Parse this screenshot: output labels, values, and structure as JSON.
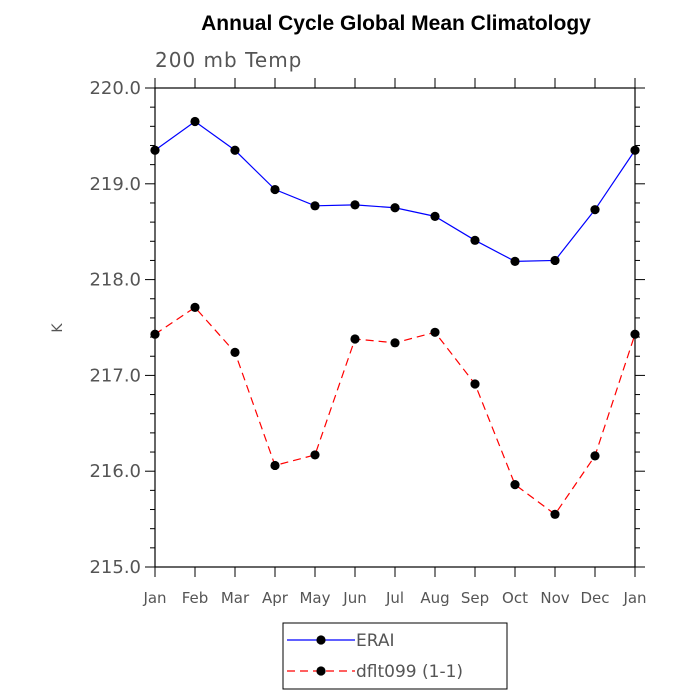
{
  "chart_data": {
    "type": "line",
    "title": "Annual Cycle Global Mean Climatology",
    "subtitle": "200 mb Temp",
    "xlabel": "",
    "ylabel": "K",
    "categories": [
      "Jan",
      "Feb",
      "Mar",
      "Apr",
      "May",
      "Jun",
      "Jul",
      "Aug",
      "Sep",
      "Oct",
      "Nov",
      "Dec",
      "Jan"
    ],
    "ylim": [
      215.0,
      220.0
    ],
    "yticks": [
      "215.0",
      "216.0",
      "217.0",
      "218.0",
      "219.0",
      "220.0"
    ],
    "grid": false,
    "legend_position": "bottom-center",
    "series": [
      {
        "name": "ERAI",
        "color": "#0000ff",
        "dash": "solid",
        "marker": "circle",
        "values": [
          219.35,
          219.65,
          219.35,
          218.94,
          218.77,
          218.78,
          218.75,
          218.66,
          218.41,
          218.19,
          218.2,
          218.73,
          219.35
        ]
      },
      {
        "name": "dflt099 (1-1)",
        "color": "#ff0000",
        "dash": "dashed",
        "marker": "circle",
        "values": [
          217.43,
          217.71,
          217.24,
          216.06,
          216.17,
          217.38,
          217.34,
          217.45,
          216.91,
          215.86,
          215.55,
          216.16,
          217.43
        ]
      }
    ]
  }
}
